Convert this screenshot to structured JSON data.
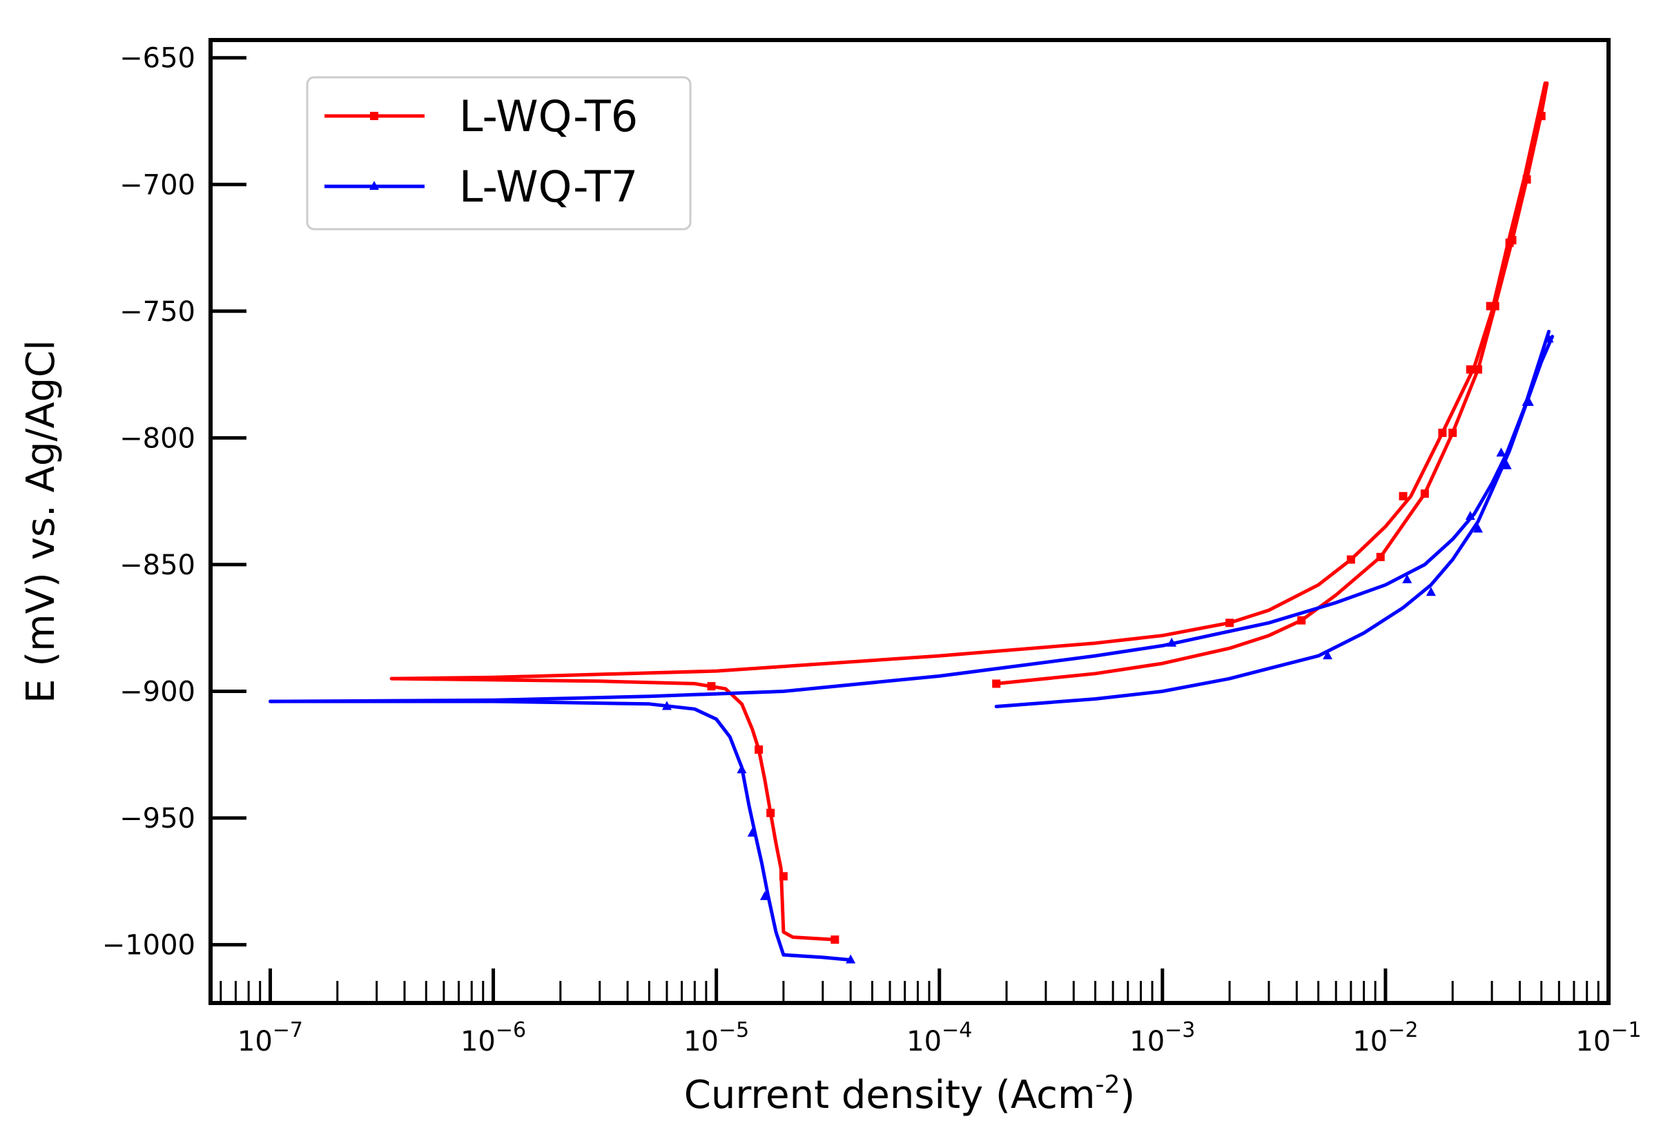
{
  "chart_data": {
    "type": "line",
    "title": "",
    "xlabel": "Current density (Acm",
    "xlabel_sup": "-2",
    "xlabel_end": ")",
    "ylabel": "E (mV) vs. Ag/AgCl",
    "xscale": "log",
    "xlim": [
      5.4e-08,
      0.1
    ],
    "ylim": [
      -1023,
      -643
    ],
    "x_ticks": [
      {
        "value": 1e-07,
        "base": "10",
        "exp": "−7"
      },
      {
        "value": 1e-06,
        "base": "10",
        "exp": "−6"
      },
      {
        "value": 1e-05,
        "base": "10",
        "exp": "−5"
      },
      {
        "value": 0.0001,
        "base": "10",
        "exp": "−4"
      },
      {
        "value": 0.001,
        "base": "10",
        "exp": "−3"
      },
      {
        "value": 0.01,
        "base": "10",
        "exp": "−2"
      },
      {
        "value": 0.1,
        "base": "10",
        "exp": "−1"
      }
    ],
    "y_ticks": [
      {
        "value": -650,
        "label": "−650"
      },
      {
        "value": -700,
        "label": "−700"
      },
      {
        "value": -750,
        "label": "−750"
      },
      {
        "value": -800,
        "label": "−800"
      },
      {
        "value": -850,
        "label": "−850"
      },
      {
        "value": -900,
        "label": "−900"
      },
      {
        "value": -950,
        "label": "−950"
      },
      {
        "value": -1000,
        "label": "−1000"
      }
    ],
    "legend_position": "top-left",
    "series": [
      {
        "name": "L-WQ-T6",
        "color": "#ff0000",
        "marker": "square",
        "segments": [
          {
            "x": [
              3.5e-07,
              1e-06,
              3e-06,
              8e-06,
              1.1e-05,
              1.3e-05,
              1.45e-05,
              1.55e-05,
              1.65e-05,
              1.75e-05,
              1.85e-05,
              1.95e-05,
              2e-05,
              2.2e-05,
              3.4e-05
            ],
            "y": [
              -895,
              -895.5,
              -896,
              -897,
              -899,
              -905,
              -915,
              -923,
              -935,
              -948,
              -960,
              -970,
              -995,
              -997,
              -998
            ]
          },
          {
            "x": [
              3.5e-07,
              1e-06,
              1e-05,
              0.0001,
              0.0005,
              0.001,
              0.002,
              0.003,
              0.005,
              0.007,
              0.01,
              0.013,
              0.018,
              0.025,
              0.03,
              0.035,
              0.042,
              0.052
            ],
            "y": [
              -895,
              -894.5,
              -892,
              -886,
              -881,
              -878,
              -873,
              -868,
              -858,
              -848,
              -835,
              -823,
              -798,
              -772,
              -750,
              -725,
              -697,
              -660
            ]
          },
          {
            "x": [
              0.00018,
              0.0005,
              0.001,
              0.002,
              0.003,
              0.0042,
              0.006,
              0.0095,
              0.015,
              0.02,
              0.026,
              0.031,
              0.037,
              0.043,
              0.05,
              0.053
            ],
            "y": [
              -897,
              -893,
              -889,
              -883,
              -878,
              -872,
              -862,
              -847,
              -822,
              -798,
              -773,
              -748,
              -722,
              -698,
              -672,
              -660
            ]
          }
        ],
        "markers": {
          "x": [
            9.5e-06,
            1.55e-05,
            1.75e-05,
            2e-05,
            3.4e-05,
            0.002,
            0.007,
            0.012,
            0.018,
            0.024,
            0.0295,
            0.036,
            0.043,
            0.05,
            0.00018,
            0.0042,
            0.0095,
            0.015,
            0.02,
            0.026,
            0.031,
            0.037
          ],
          "y": [
            -898,
            -923,
            -948,
            -973,
            -998,
            -873,
            -848,
            -823,
            -798,
            -773,
            -748,
            -723,
            -698,
            -673,
            -897,
            -872,
            -847,
            -822,
            -798,
            -773,
            -748,
            -722
          ]
        }
      },
      {
        "name": "L-WQ-T7",
        "color": "#0000ff",
        "marker": "triangle",
        "segments": [
          {
            "x": [
              1e-07,
              1e-06,
              5e-06,
              8e-06,
              1e-05,
              1.15e-05,
              1.3e-05,
              1.4e-05,
              1.5e-05,
              1.6e-05,
              1.7e-05,
              1.85e-05,
              2e-05,
              3e-05,
              4e-05
            ],
            "y": [
              -904,
              -904,
              -905,
              -907,
              -911,
              -918,
              -930,
              -945,
              -957,
              -968,
              -980,
              -995,
              -1004,
              -1005,
              -1006
            ]
          },
          {
            "x": [
              1e-07,
              1e-06,
              5e-06,
              2e-05,
              0.0001,
              0.0005,
              0.001,
              0.003,
              0.006,
              0.01,
              0.015,
              0.02,
              0.025,
              0.03,
              0.035,
              0.042,
              0.054
            ],
            "y": [
              -904,
              -903.5,
              -902,
              -900,
              -894,
              -886,
              -882,
              -873,
              -865,
              -858,
              -850,
              -840,
              -830,
              -818,
              -806,
              -788,
              -758
            ]
          },
          {
            "x": [
              0.00018,
              0.0005,
              0.001,
              0.002,
              0.003,
              0.005,
              0.008,
              0.012,
              0.016,
              0.02,
              0.026,
              0.031,
              0.036,
              0.043,
              0.05,
              0.056
            ],
            "y": [
              -906,
              -903,
              -900,
              -895,
              -891,
              -886,
              -877,
              -867,
              -858,
              -848,
              -833,
              -818,
              -805,
              -786,
              -770,
              -760
            ]
          }
        ],
        "markers": {
          "x": [
            6e-06,
            1.3e-05,
            1.45e-05,
            1.65e-05,
            4e-05,
            0.0011,
            0.0125,
            0.024,
            0.033,
            0.044,
            0.054,
            0.0055,
            0.016,
            0.026,
            0.035,
            0.043
          ],
          "y": [
            -906,
            -931,
            -956,
            -981,
            -1006,
            -881,
            -856,
            -831,
            -806,
            -786,
            -761,
            -886,
            -861,
            -836,
            -811,
            -786
          ]
        }
      }
    ]
  }
}
